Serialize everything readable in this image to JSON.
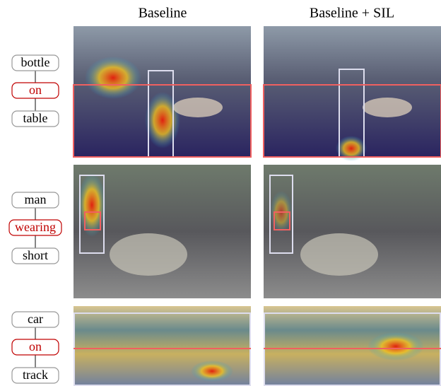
{
  "header": {
    "columns": [
      "Baseline",
      "Baseline + SIL"
    ]
  },
  "rows": [
    {
      "subject": "bottle",
      "predicate": "on",
      "object": "table"
    },
    {
      "subject": "man",
      "predicate": "wearing",
      "object": "short"
    },
    {
      "subject": "car",
      "predicate": "on",
      "object": "track"
    }
  ]
}
